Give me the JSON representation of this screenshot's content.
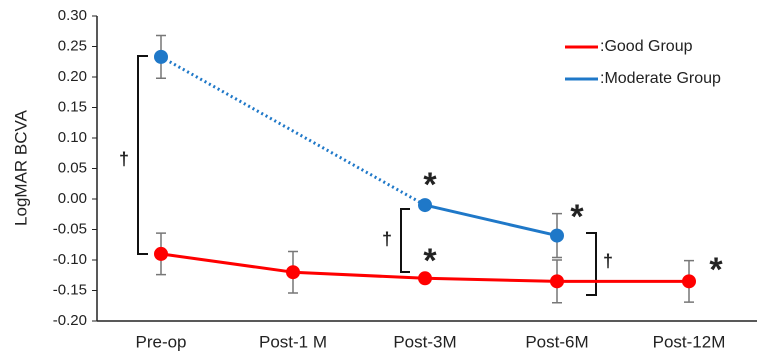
{
  "chart_data": {
    "type": "line",
    "y_label": "LogMAR BCVA",
    "categories": [
      "Pre-op",
      "Post-1 M",
      "Post-3M",
      "Post-6M",
      "Post-12M"
    ],
    "series": [
      {
        "name": ":Good Group",
        "color": "#ff0000",
        "values": [
          -0.09,
          -0.12,
          -0.13,
          -0.135,
          -0.135
        ],
        "errors": [
          0.034,
          0.034,
          0.005,
          0.035,
          0.034
        ]
      },
      {
        "name": ":Moderate Group",
        "color": "#1f78c8",
        "values": [
          0.233,
          null,
          -0.01,
          -0.06,
          null
        ],
        "errors": [
          0.035,
          null,
          0.005,
          0.036,
          null
        ]
      }
    ],
    "ylim": [
      -0.2,
      0.3
    ],
    "yticks": [
      {
        "value": 0.3,
        "label": "0.30"
      },
      0.25,
      {
        "value": 0.2,
        "label": "0.20"
      },
      0.15,
      {
        "value": 0.1,
        "label": "0.10"
      },
      0.05,
      {
        "value": 0,
        "label": "0.00"
      },
      -0.05,
      {
        "value": -0.1,
        "label": "-0.10"
      },
      -0.15,
      {
        "value": -0.2,
        "label": "-0.20"
      }
    ],
    "annotations": [
      "*",
      "*",
      "*",
      "*",
      "†",
      "†",
      "†"
    ],
    "legend": "upper right"
  }
}
